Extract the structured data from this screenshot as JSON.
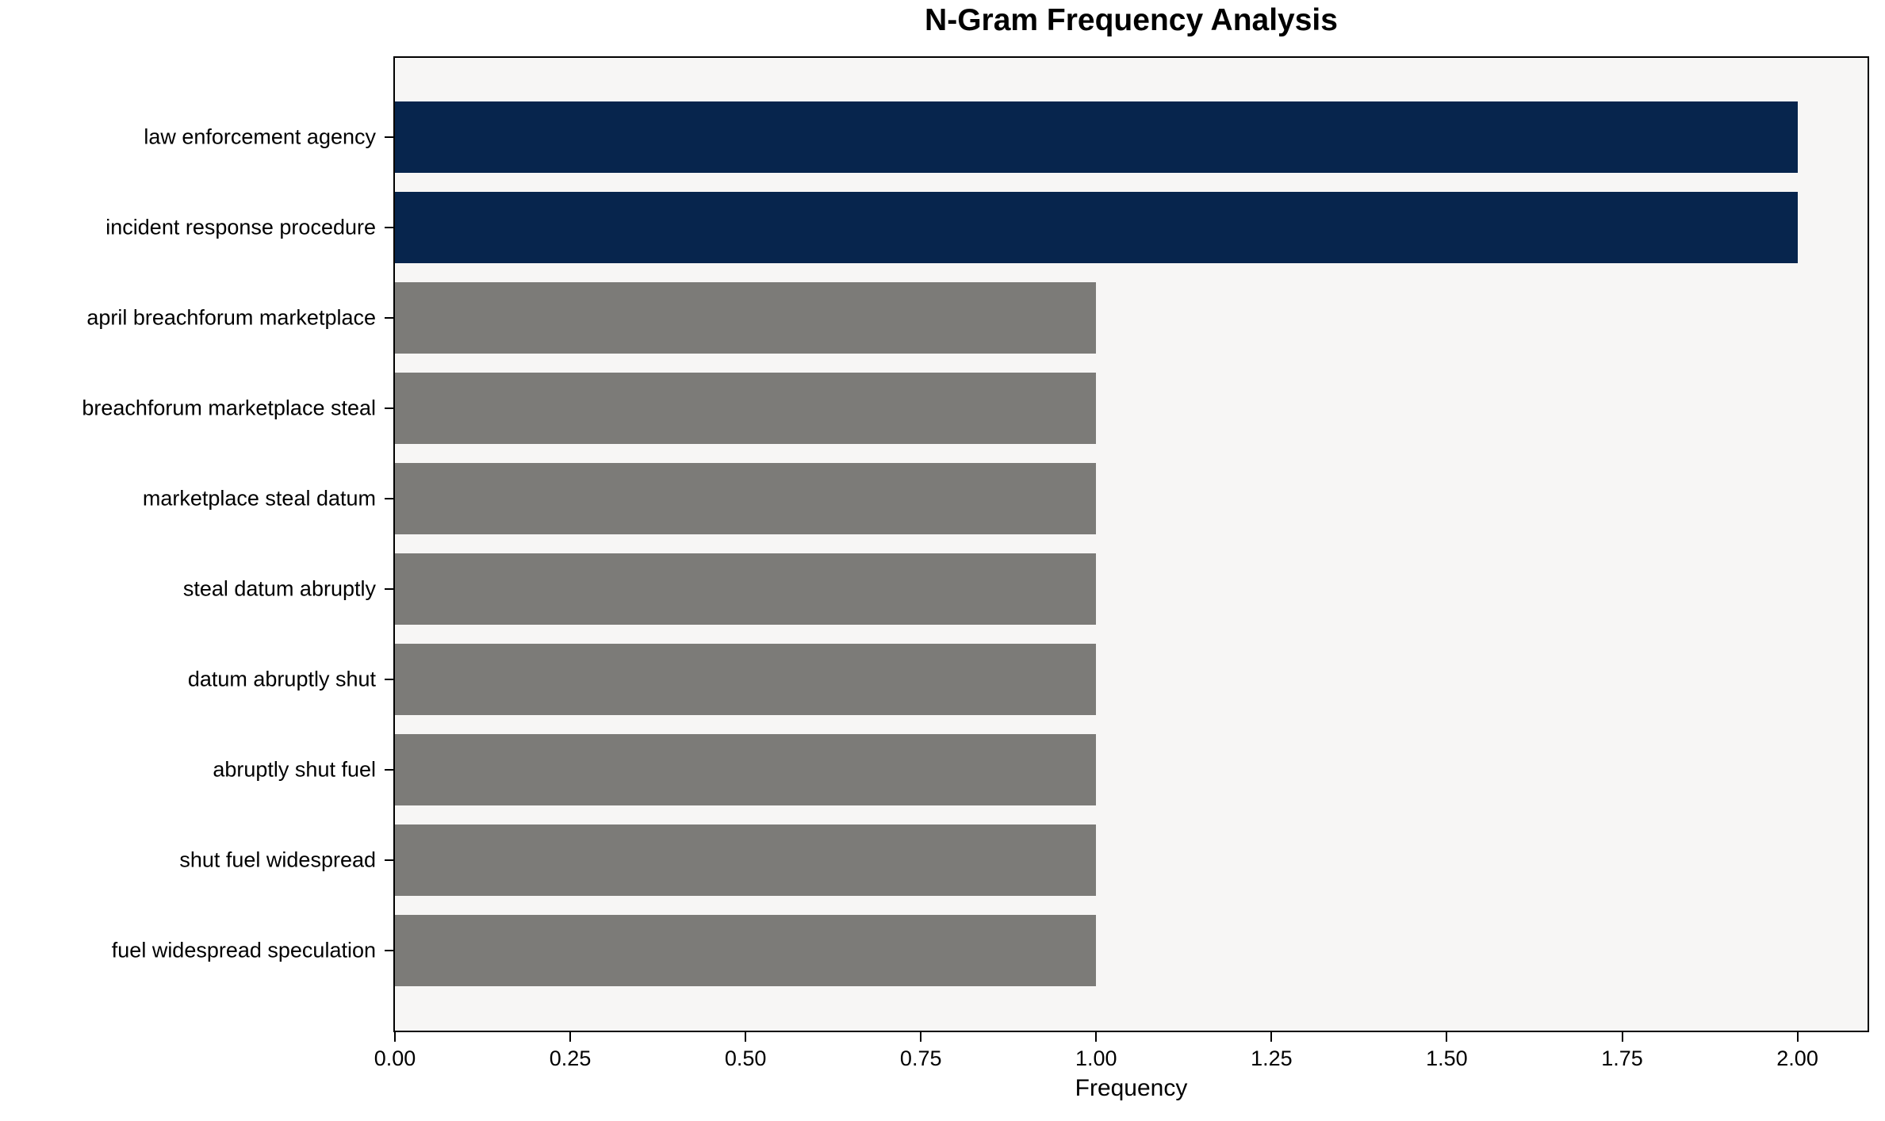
{
  "chart_data": {
    "type": "bar",
    "orientation": "horizontal",
    "title": "N-Gram Frequency Analysis",
    "xlabel": "Frequency",
    "ylabel": "",
    "categories": [
      "law enforcement agency",
      "incident response procedure",
      "april breachforum marketplace",
      "breachforum marketplace steal",
      "marketplace steal datum",
      "steal datum abruptly",
      "datum abruptly shut",
      "abruptly shut fuel",
      "shut fuel widespread",
      "fuel widespread speculation"
    ],
    "values": [
      2,
      2,
      1,
      1,
      1,
      1,
      1,
      1,
      1,
      1
    ],
    "bar_colors": [
      "#07254d",
      "#07254d",
      "#7c7b78",
      "#7c7b78",
      "#7c7b78",
      "#7c7b78",
      "#7c7b78",
      "#7c7b78",
      "#7c7b78",
      "#7c7b78"
    ],
    "highlight_color": "#07254d",
    "default_color": "#7c7b78",
    "plot_background": "#f7f6f5",
    "axis_color": "#000000",
    "xlim": [
      0,
      2.1
    ],
    "x_tick_values": [
      0,
      0.25,
      0.5,
      0.75,
      1.0,
      1.25,
      1.5,
      1.75,
      2.0
    ],
    "x_tick_labels": [
      "0.00",
      "0.25",
      "0.50",
      "0.75",
      "1.00",
      "1.25",
      "1.50",
      "1.75",
      "2.00"
    ],
    "grid": false,
    "legend_position": "none"
  }
}
